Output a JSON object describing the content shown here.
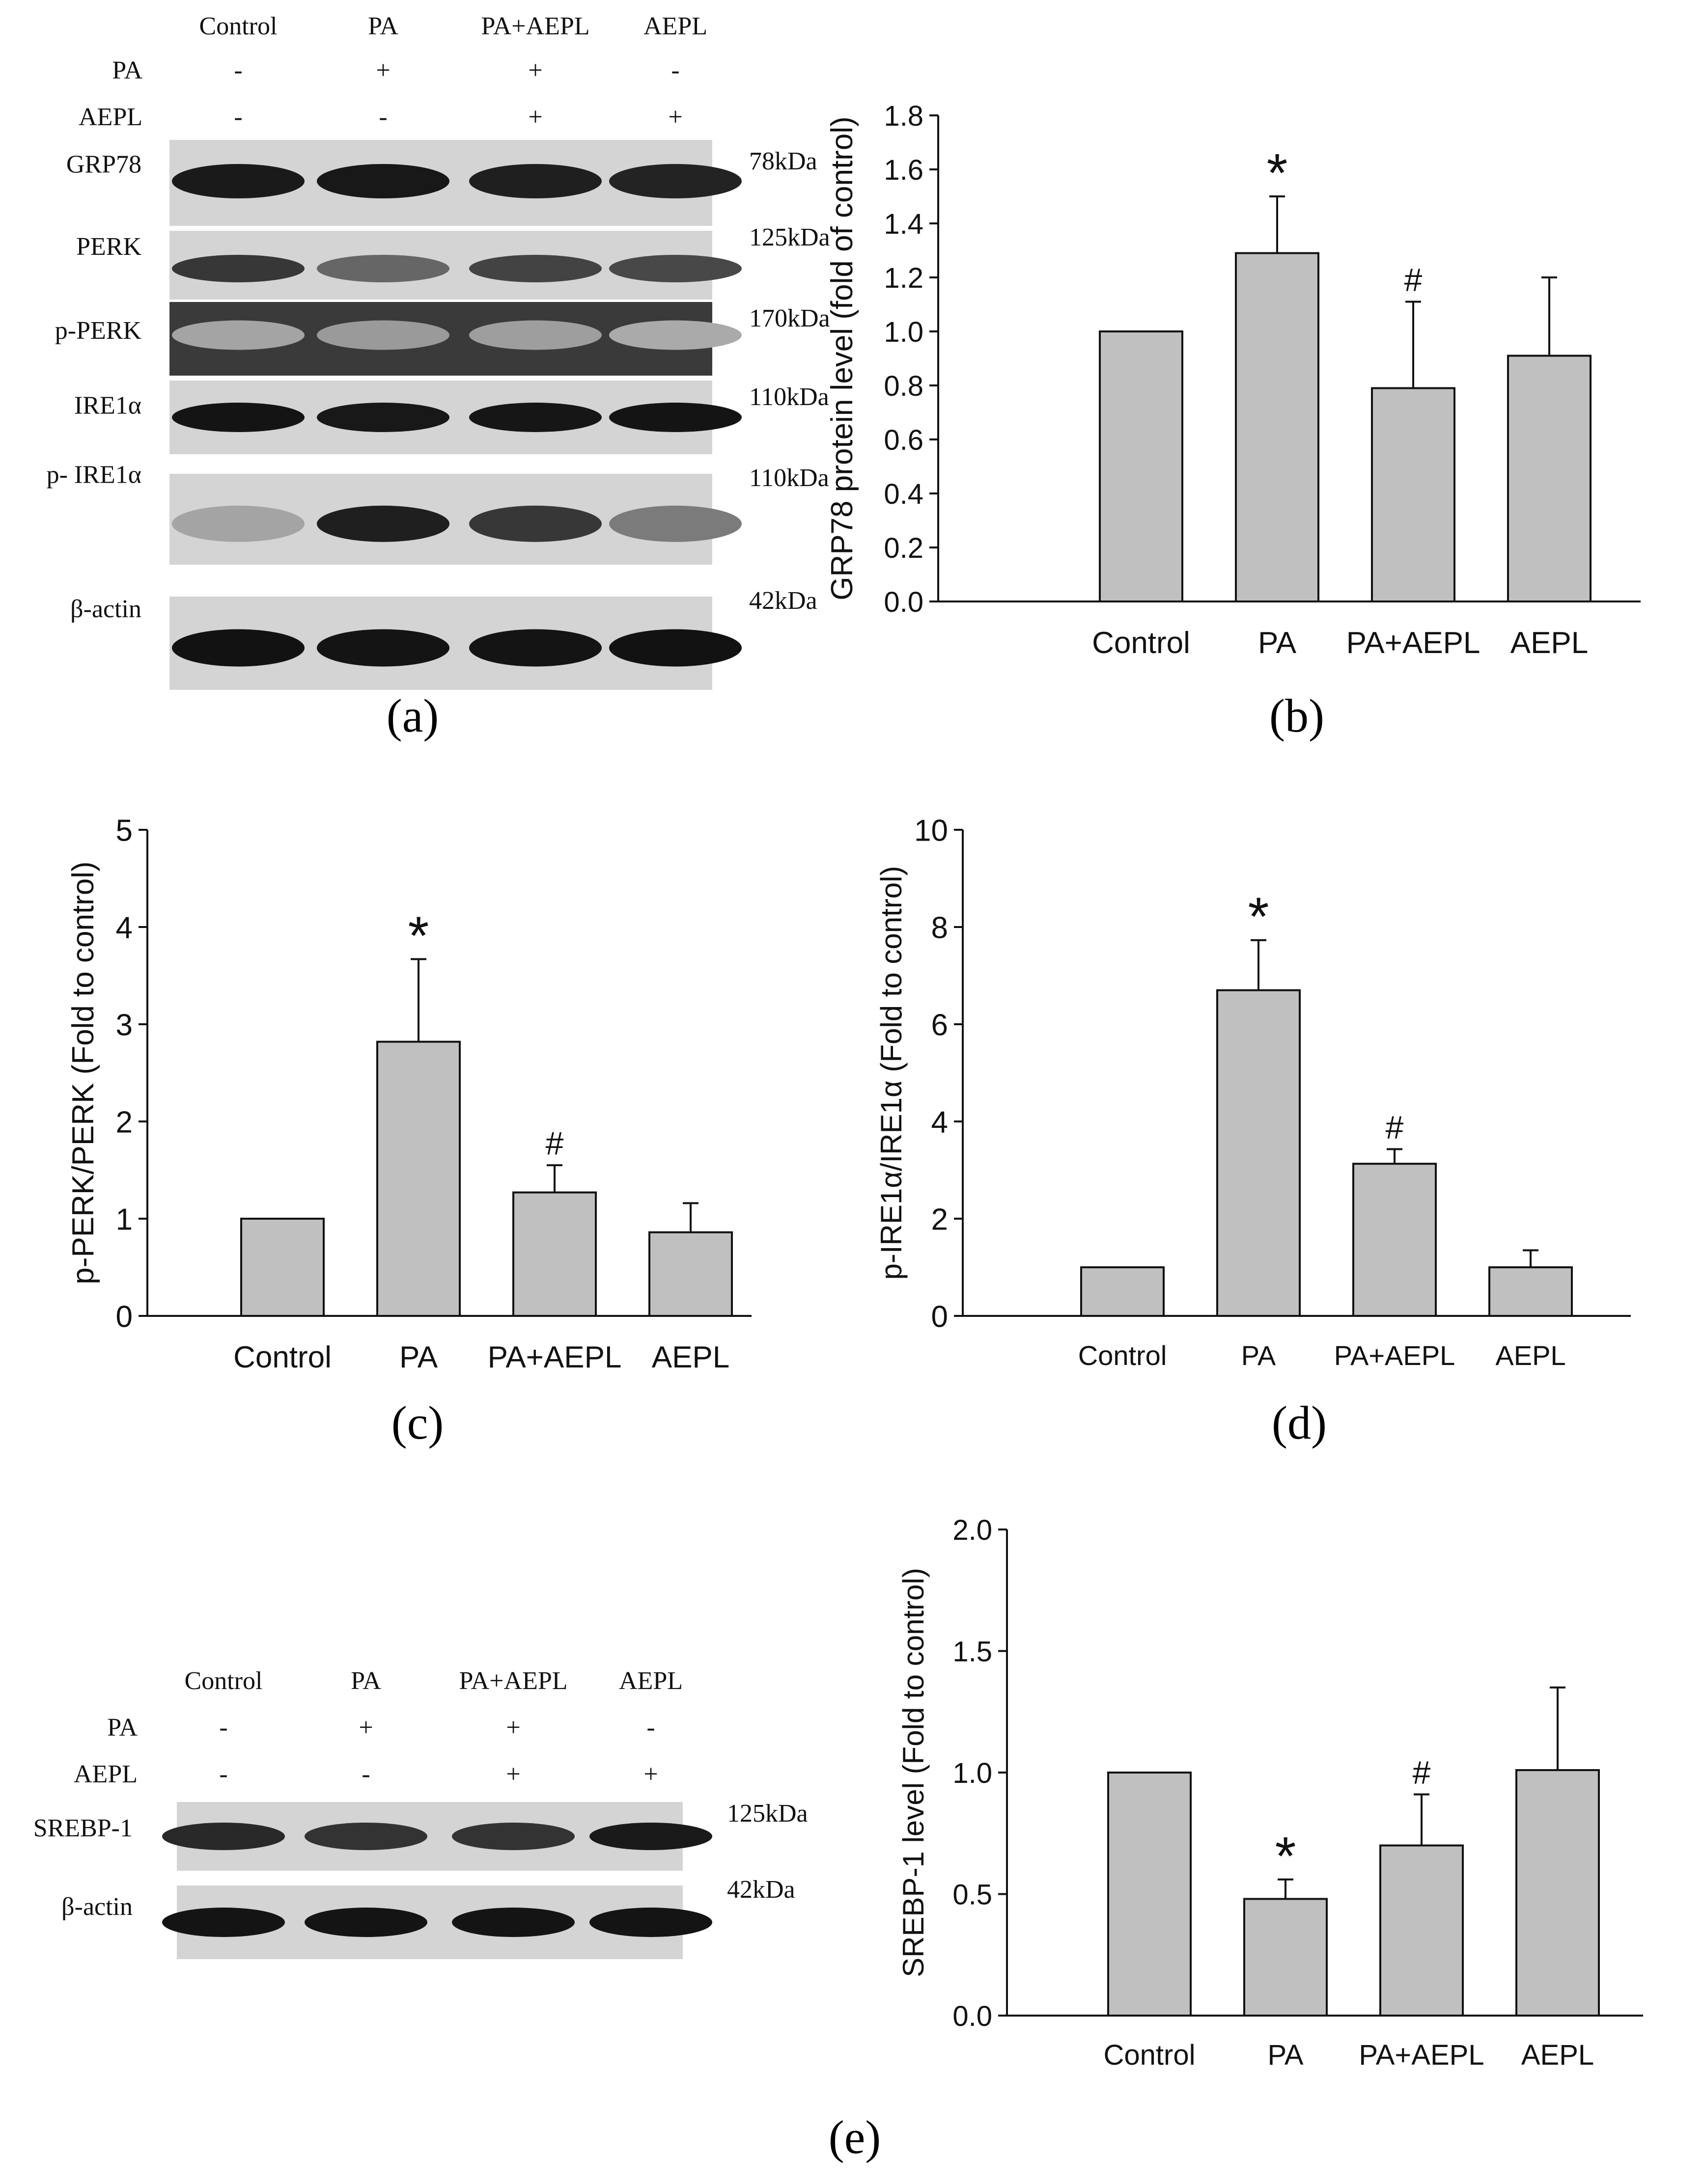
{
  "panel_labels": [
    "(a)",
    "(b)",
    "(c)",
    "(d)",
    "(e)"
  ],
  "blot_a": {
    "lanes": [
      "Control",
      "PA",
      "PA+AEPL",
      "AEPL"
    ],
    "treatments": [
      {
        "label": "PA",
        "signs": [
          "-",
          "+",
          "+",
          "-"
        ]
      },
      {
        "label": "AEPL",
        "signs": [
          "-",
          "-",
          "+",
          "+"
        ]
      }
    ],
    "rows": [
      {
        "label": "GRP78",
        "kda": "78kDa"
      },
      {
        "label": "PERK",
        "kda": "125kDa"
      },
      {
        "label": "p-PERK",
        "kda": "170kDa"
      },
      {
        "label": "IRE1α",
        "kda": "110kDa"
      },
      {
        "label": "p- IRE1α",
        "kda": "110kDa"
      },
      {
        "label": "β-actin",
        "kda": "42kDa"
      }
    ],
    "band_intensity": [
      [
        0.92,
        0.93,
        0.9,
        0.88
      ],
      [
        0.78,
        0.55,
        0.72,
        0.7
      ],
      [
        0.25,
        0.3,
        0.28,
        0.22
      ],
      [
        0.95,
        0.93,
        0.94,
        0.95
      ],
      [
        0.25,
        0.9,
        0.78,
        0.45
      ],
      [
        0.96,
        0.95,
        0.95,
        0.96
      ]
    ]
  },
  "blot_e": {
    "lanes": [
      "Control",
      "PA",
      "PA+AEPL",
      "AEPL"
    ],
    "treatments": [
      {
        "label": "PA",
        "signs": [
          "-",
          "+",
          "+",
          "-"
        ]
      },
      {
        "label": "AEPL",
        "signs": [
          "-",
          "-",
          "+",
          "+"
        ]
      }
    ],
    "rows": [
      {
        "label": "SREBP-1",
        "kda": "125kDa"
      },
      {
        "label": "β-actin",
        "kda": "42kDa"
      }
    ],
    "band_intensity": [
      [
        0.85,
        0.8,
        0.8,
        0.92
      ],
      [
        0.95,
        0.95,
        0.95,
        0.95
      ]
    ]
  },
  "chart_data": [
    {
      "id": "b",
      "type": "bar",
      "categories": [
        "Control",
        "PA",
        "PA+AEPL",
        "AEPL"
      ],
      "values": [
        1.0,
        1.29,
        0.79,
        0.91
      ],
      "errors": [
        0,
        0.21,
        0.32,
        0.29
      ],
      "annotations": [
        "",
        "*",
        "#",
        ""
      ],
      "ylabel": "GRP78 protein level (fold of control)",
      "ylim": [
        0,
        1.8
      ],
      "yticks": [
        "0.0",
        "0.2",
        "0.4",
        "0.6",
        "0.8",
        "1.0",
        "1.2",
        "1.4",
        "1.6",
        "1.8"
      ],
      "bar_color": "#c0c0c0"
    },
    {
      "id": "c",
      "type": "bar",
      "categories": [
        "Control",
        "PA",
        "PA+AEPL",
        "AEPL"
      ],
      "values": [
        1.0,
        2.82,
        1.27,
        0.86
      ],
      "errors": [
        0,
        0.85,
        0.28,
        0.3
      ],
      "annotations": [
        "",
        "*",
        "#",
        ""
      ],
      "ylabel": "p-PERK/PERK (Fold to control)",
      "ylim": [
        0,
        5
      ],
      "yticks": [
        "0",
        "1",
        "2",
        "3",
        "4",
        "5"
      ],
      "bar_color": "#c0c0c0"
    },
    {
      "id": "d",
      "type": "bar",
      "categories": [
        "Control",
        "PA",
        "PA+AEPL",
        "AEPL"
      ],
      "values": [
        1.0,
        6.7,
        3.13,
        1.0
      ],
      "errors": [
        0,
        1.03,
        0.3,
        0.35
      ],
      "annotations": [
        "",
        "*",
        "#",
        ""
      ],
      "ylabel": "p-IRE1α/IRE1α (Fold to control)",
      "ylim": [
        0,
        10
      ],
      "yticks": [
        "0",
        "2",
        "4",
        "6",
        "8",
        "10"
      ],
      "bar_color": "#c0c0c0"
    },
    {
      "id": "e",
      "type": "bar",
      "categories": [
        "Control",
        "PA",
        "PA+AEPL",
        "AEPL"
      ],
      "values": [
        1.0,
        0.48,
        0.7,
        1.01
      ],
      "errors": [
        0,
        0.08,
        0.21,
        0.34
      ],
      "annotations": [
        "",
        "*",
        "#",
        ""
      ],
      "ylabel": "SREBP-1 level (Fold to control)",
      "ylim": [
        0,
        2.0
      ],
      "yticks": [
        "0.0",
        "0.5",
        "1.0",
        "1.5",
        "2.0"
      ],
      "bar_color": "#c0c0c0"
    }
  ]
}
